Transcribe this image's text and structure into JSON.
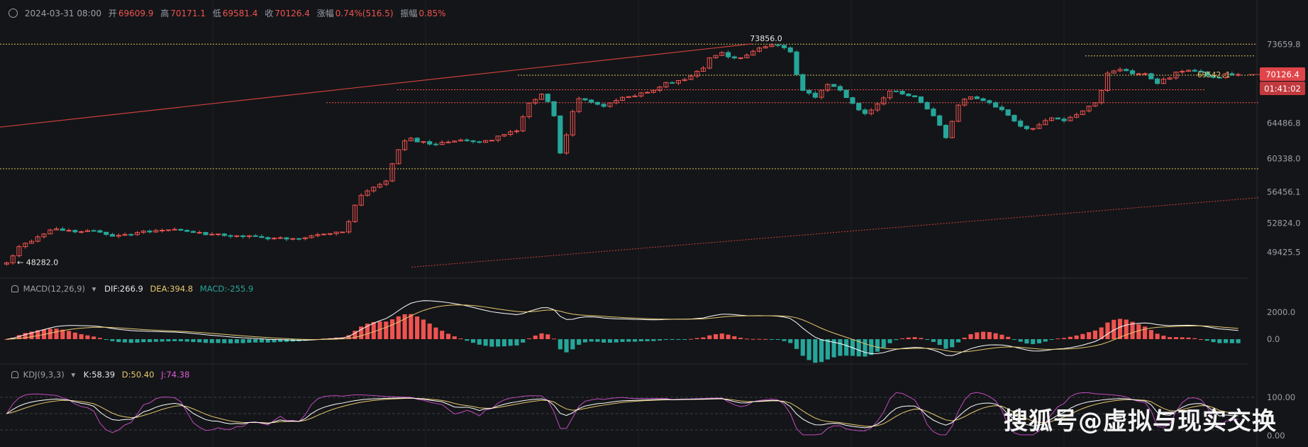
{
  "header": {
    "datetime": "2024-03-31 08:00",
    "open_label": "开",
    "open": "69609.9",
    "high_label": "高",
    "high": "70171.1",
    "low_label": "低",
    "low": "69581.4",
    "close_label": "收",
    "close": "70126.4",
    "change_label": "涨幅",
    "change": "0.74%(516.5)",
    "amplitude_label": "振幅",
    "amplitude": "0.85%"
  },
  "macd": {
    "name": "MACD(12,26,9)",
    "dif": "DIF:266.9",
    "dea": "DEA:394.8",
    "macd": "MACD:-255.9"
  },
  "kdj": {
    "name": "KDJ(9,3,3)",
    "k": "K:58.39",
    "d": "D:50.40",
    "j": "J:74.38"
  },
  "price_tag": "70126.4",
  "countdown": "01:41:02",
  "watermark": "搜狐号@虚拟与现实交换",
  "colors": {
    "up": "#ef5350",
    "down": "#26a69a",
    "bg": "#141518",
    "dif": "#ffffff",
    "dea": "#e6c86e",
    "j": "#c04bc0"
  },
  "chart_data": {
    "type": "candlestick",
    "price_axis_ticks": [
      73659.8,
      69542.1,
      64486.8,
      60338.0,
      56456.1,
      52824.0,
      49425.5
    ],
    "price_axis_labels": [
      "73659.8",
      "64486.8",
      "60338.0",
      "56456.1",
      "52824.0",
      "49425.5"
    ],
    "macd_axis_labels": [
      "2000.0",
      "0.0"
    ],
    "kdj_axis_labels": [
      "100.00",
      "0.00"
    ],
    "annotations": [
      {
        "label": "73856.0",
        "value": 73856.0
      },
      {
        "label": "69542.1",
        "value": 69542.1
      },
      {
        "label": "48282.0",
        "value": 48282.0
      }
    ],
    "horizontal_levels": [
      73659.8,
      70050,
      68350,
      66850,
      59150
    ],
    "ylim": [
      47000,
      75500
    ],
    "price_path": [
      [
        0,
        48300
      ],
      [
        2,
        50000
      ],
      [
        6,
        51600
      ],
      [
        8,
        52200
      ],
      [
        10,
        51900
      ],
      [
        14,
        52000
      ],
      [
        17,
        51400
      ],
      [
        20,
        51600
      ],
      [
        23,
        51900
      ],
      [
        27,
        52000
      ],
      [
        30,
        51700
      ],
      [
        34,
        51500
      ],
      [
        38,
        51300
      ],
      [
        42,
        51100
      ],
      [
        46,
        51000
      ],
      [
        49,
        51300
      ],
      [
        52,
        51500
      ],
      [
        54,
        51900
      ],
      [
        55,
        53100
      ],
      [
        56,
        55000
      ],
      [
        57,
        56000
      ],
      [
        59,
        57000
      ],
      [
        61,
        57800
      ],
      [
        62,
        59800
      ],
      [
        63,
        61400
      ],
      [
        64,
        62300
      ],
      [
        65,
        62700
      ],
      [
        66,
        62400
      ],
      [
        68,
        62000
      ],
      [
        70,
        62200
      ],
      [
        73,
        62400
      ],
      [
        76,
        62100
      ],
      [
        78,
        62600
      ],
      [
        80,
        63100
      ],
      [
        82,
        63600
      ],
      [
        83,
        65200
      ],
      [
        84,
        66700
      ],
      [
        86,
        67800
      ],
      [
        87,
        67100
      ],
      [
        88,
        65400
      ],
      [
        89,
        61000
      ],
      [
        90,
        63200
      ],
      [
        91,
        65800
      ],
      [
        92,
        67200
      ],
      [
        94,
        67000
      ],
      [
        96,
        66400
      ],
      [
        98,
        67100
      ],
      [
        100,
        67600
      ],
      [
        102,
        67900
      ],
      [
        104,
        68400
      ],
      [
        106,
        69200
      ],
      [
        108,
        69300
      ],
      [
        110,
        69900
      ],
      [
        112,
        70900
      ],
      [
        113,
        72100
      ],
      [
        115,
        72600
      ],
      [
        117,
        72000
      ],
      [
        119,
        72400
      ],
      [
        121,
        73200
      ],
      [
        123,
        73700
      ],
      [
        125,
        73300
      ],
      [
        126,
        72700
      ],
      [
        127,
        70200
      ],
      [
        128,
        68200
      ],
      [
        130,
        67600
      ],
      [
        132,
        69100
      ],
      [
        134,
        68200
      ],
      [
        136,
        66700
      ],
      [
        138,
        65500
      ],
      [
        140,
        66700
      ],
      [
        142,
        68300
      ],
      [
        144,
        67900
      ],
      [
        146,
        67500
      ],
      [
        147,
        66800
      ],
      [
        149,
        65400
      ],
      [
        150,
        64200
      ],
      [
        151,
        62800
      ],
      [
        152,
        64600
      ],
      [
        153,
        66700
      ],
      [
        155,
        67600
      ],
      [
        157,
        67200
      ],
      [
        159,
        66400
      ],
      [
        161,
        65400
      ],
      [
        163,
        64100
      ],
      [
        164,
        63700
      ],
      [
        166,
        64200
      ],
      [
        168,
        65100
      ],
      [
        170,
        64800
      ],
      [
        172,
        65500
      ],
      [
        174,
        66400
      ],
      [
        175,
        66900
      ],
      [
        176,
        68300
      ],
      [
        177,
        70300
      ],
      [
        179,
        70800
      ],
      [
        181,
        70100
      ],
      [
        183,
        70300
      ],
      [
        184,
        69700
      ],
      [
        185,
        69200
      ],
      [
        187,
        69800
      ],
      [
        188,
        70500
      ],
      [
        190,
        70700
      ],
      [
        192,
        70300
      ],
      [
        194,
        69700
      ],
      [
        196,
        70100
      ],
      [
        198,
        70100
      ]
    ]
  }
}
